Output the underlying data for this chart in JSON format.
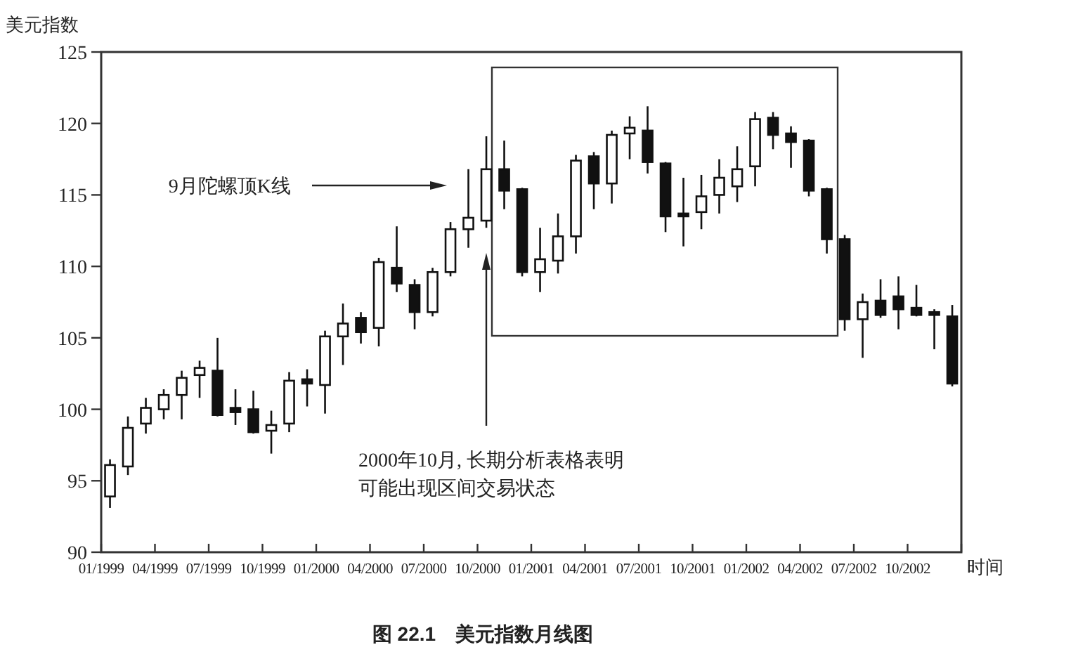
{
  "chart_data": {
    "type": "candlestick",
    "title": "图 22.1　美元指数月线图",
    "ylabel": "美元指数",
    "xlabel": "时间",
    "x": [
      "1999-01-16",
      "1999-02-16",
      "1999-03-16",
      "1999-04-16",
      "1999-05-16",
      "1999-06-16",
      "1999-07-16",
      "1999-08-16",
      "1999-09-16",
      "1999-10-16",
      "1999-11-16",
      "1999-12-16",
      "2000-01-16",
      "2000-02-16",
      "2000-03-16",
      "2000-04-16",
      "2000-05-16",
      "2000-06-16",
      "2000-07-16",
      "2000-08-16",
      "2000-09-16",
      "2000-10-16",
      "2000-11-16",
      "2000-12-16",
      "2001-01-16",
      "2001-02-16",
      "2001-03-16",
      "2001-04-16",
      "2001-05-16",
      "2001-06-16",
      "2001-07-16",
      "2001-08-16",
      "2001-09-16",
      "2001-10-16",
      "2001-11-16",
      "2001-12-16",
      "2002-01-16",
      "2002-02-16",
      "2002-03-16",
      "2002-04-16",
      "2002-05-16",
      "2002-06-16",
      "2002-07-16",
      "2002-08-16",
      "2002-09-16",
      "2002-10-16",
      "2002-11-16",
      "2002-12-16"
    ],
    "ohlc": [
      [
        93.9,
        96.5,
        93.1,
        96.1
      ],
      [
        96.0,
        99.5,
        95.4,
        98.7
      ],
      [
        99.0,
        100.8,
        98.3,
        100.1
      ],
      [
        100.0,
        101.4,
        99.3,
        101.0
      ],
      [
        101.0,
        102.7,
        99.3,
        102.2
      ],
      [
        102.4,
        103.4,
        100.8,
        102.9
      ],
      [
        102.7,
        105.0,
        99.5,
        99.6
      ],
      [
        100.1,
        101.4,
        98.9,
        99.8
      ],
      [
        100.0,
        101.3,
        98.3,
        98.4
      ],
      [
        98.5,
        99.9,
        96.9,
        98.9
      ],
      [
        99.0,
        102.6,
        98.4,
        102.0
      ],
      [
        102.1,
        102.8,
        100.2,
        101.8
      ],
      [
        101.7,
        105.5,
        99.7,
        105.1
      ],
      [
        105.1,
        107.4,
        103.1,
        106.0
      ],
      [
        106.4,
        106.8,
        104.6,
        105.4
      ],
      [
        105.7,
        110.6,
        104.4,
        110.3
      ],
      [
        109.9,
        112.8,
        108.2,
        108.8
      ],
      [
        108.7,
        109.1,
        105.6,
        106.8
      ],
      [
        106.8,
        109.9,
        106.5,
        109.6
      ],
      [
        109.6,
        113.1,
        109.3,
        112.6
      ],
      [
        112.6,
        116.8,
        111.3,
        113.4
      ],
      [
        113.2,
        119.1,
        112.7,
        116.8
      ],
      [
        116.8,
        118.8,
        114.0,
        115.3
      ],
      [
        115.4,
        115.5,
        109.3,
        109.6
      ],
      [
        109.6,
        112.7,
        108.2,
        110.5
      ],
      [
        110.4,
        113.7,
        109.5,
        112.1
      ],
      [
        112.1,
        117.8,
        110.9,
        117.4
      ],
      [
        117.7,
        118.0,
        114.0,
        115.8
      ],
      [
        115.8,
        119.5,
        114.4,
        119.2
      ],
      [
        119.3,
        120.5,
        117.5,
        119.7
      ],
      [
        119.5,
        121.2,
        116.5,
        117.3
      ],
      [
        117.2,
        117.3,
        112.4,
        113.5
      ],
      [
        113.7,
        116.2,
        111.4,
        113.5
      ],
      [
        113.8,
        116.4,
        112.6,
        114.9
      ],
      [
        115.0,
        117.5,
        113.7,
        116.2
      ],
      [
        115.6,
        118.4,
        114.5,
        116.8
      ],
      [
        117.0,
        120.8,
        115.6,
        120.3
      ],
      [
        120.4,
        120.8,
        118.2,
        119.2
      ],
      [
        119.3,
        119.8,
        116.9,
        118.7
      ],
      [
        118.8,
        118.9,
        114.9,
        115.3
      ],
      [
        115.4,
        115.5,
        110.9,
        111.9
      ],
      [
        111.9,
        112.2,
        105.5,
        106.3
      ],
      [
        106.3,
        108.1,
        103.6,
        107.5
      ],
      [
        107.6,
        109.1,
        106.4,
        106.6
      ],
      [
        107.9,
        109.3,
        105.6,
        107.0
      ],
      [
        107.1,
        108.7,
        106.5,
        106.6
      ],
      [
        106.8,
        107.0,
        104.2,
        106.6
      ],
      [
        106.5,
        107.3,
        101.6,
        101.8
      ]
    ],
    "xlim": [
      "1999-01",
      "2003-01"
    ],
    "xticks": [
      {
        "value": "1999-01",
        "label": "01/1999"
      },
      {
        "value": "1999-04",
        "label": "04/1999"
      },
      {
        "value": "1999-07",
        "label": "07/1999"
      },
      {
        "value": "1999-10",
        "label": "10/1999"
      },
      {
        "value": "2000-01",
        "label": "01/2000"
      },
      {
        "value": "2000-04",
        "label": "04/2000"
      },
      {
        "value": "2000-07",
        "label": "07/2000"
      },
      {
        "value": "2000-10",
        "label": "10/2000"
      },
      {
        "value": "2001-01",
        "label": "01/2001"
      },
      {
        "value": "2001-04",
        "label": "04/2001"
      },
      {
        "value": "2001-07",
        "label": "07/2001"
      },
      {
        "value": "2001-10",
        "label": "10/2001"
      },
      {
        "value": "2002-01",
        "label": "01/2002"
      },
      {
        "value": "2002-04",
        "label": "04/2002"
      },
      {
        "value": "2002-07",
        "label": "07/2002"
      },
      {
        "value": "2002-10",
        "label": "10/2002"
      },
      {
        "value": "2003-01",
        "label": null
      }
    ],
    "ylim": [
      90,
      125
    ],
    "yticks": [
      90,
      95,
      100,
      105,
      110,
      115,
      120,
      125
    ],
    "annotations": [
      "9月陀螺顶K线",
      "2000年10月, 长期分析表格表明",
      "可能出现区间交易状态"
    ]
  }
}
